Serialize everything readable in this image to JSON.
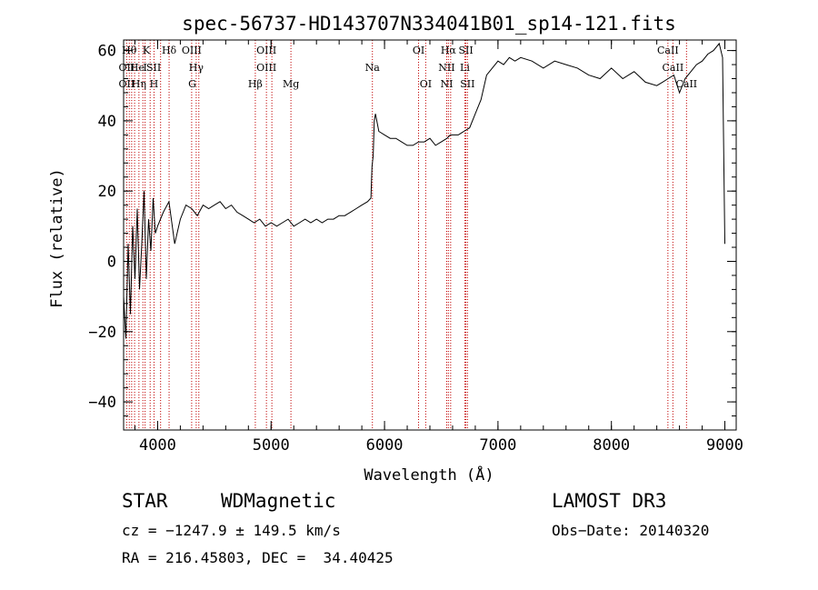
{
  "chart_data": {
    "type": "line",
    "title": "spec-56737-HD143707N334041B01_sp14-121.fits",
    "xlabel": "Wavelength (Å)",
    "ylabel": "Flux (relative)",
    "xlim": [
      3700,
      9100
    ],
    "ylim": [
      -48,
      63
    ],
    "x_ticks": [
      4000,
      5000,
      6000,
      7000,
      8000,
      9000
    ],
    "y_ticks": [
      -40,
      -20,
      0,
      20,
      40,
      60
    ],
    "x_minor_step": 200,
    "y_minor_step": 4,
    "grid": false,
    "line_color": "#000000",
    "marker_color": "#c00000",
    "series": [
      {
        "x": [
          3700,
          3720,
          3740,
          3760,
          3780,
          3800,
          3820,
          3840,
          3860,
          3880,
          3900,
          3920,
          3940,
          3960,
          3980,
          4000,
          4050,
          4100,
          4150,
          4200,
          4250,
          4300,
          4350,
          4400,
          4450,
          4500,
          4550,
          4600,
          4650,
          4700,
          4750,
          4800,
          4850,
          4900,
          4950,
          5000,
          5050,
          5100,
          5150,
          5200,
          5250,
          5300,
          5350,
          5400,
          5450,
          5500,
          5550,
          5600,
          5650,
          5700,
          5750,
          5800,
          5850,
          5880,
          5890,
          5900,
          5910,
          5920,
          5950,
          6000,
          6050,
          6100,
          6150,
          6200,
          6250,
          6300,
          6350,
          6400,
          6450,
          6500,
          6550,
          6580,
          6620,
          6650,
          6700,
          6750,
          6800,
          6850,
          6900,
          6950,
          7000,
          7050,
          7100,
          7150,
          7200,
          7300,
          7400,
          7500,
          7600,
          7700,
          7800,
          7900,
          8000,
          8100,
          8200,
          8300,
          8400,
          8450,
          8500,
          8550,
          8600,
          8650,
          8700,
          8750,
          8800,
          8850,
          8900,
          8950,
          8980,
          9000
        ],
        "y": [
          -10,
          -22,
          5,
          -15,
          10,
          -5,
          15,
          -8,
          5,
          20,
          -5,
          12,
          3,
          18,
          8,
          10,
          14,
          17,
          5,
          12,
          16,
          15,
          13,
          16,
          15,
          16,
          17,
          15,
          16,
          14,
          13,
          12,
          11,
          12,
          10,
          11,
          10,
          11,
          12,
          10,
          11,
          12,
          11,
          12,
          11,
          12,
          12,
          13,
          13,
          14,
          15,
          16,
          17,
          18,
          27,
          30,
          40,
          42,
          37,
          36,
          35,
          35,
          34,
          33,
          33,
          34,
          34,
          35,
          33,
          34,
          35,
          36,
          36,
          36,
          37,
          38,
          42,
          46,
          53,
          55,
          57,
          56,
          58,
          57,
          58,
          57,
          55,
          57,
          56,
          55,
          53,
          52,
          55,
          52,
          54,
          51,
          50,
          51,
          52,
          53,
          48,
          52,
          54,
          56,
          57,
          59,
          60,
          62,
          58,
          5
        ]
      }
    ],
    "line_markers": [
      {
        "x": 3750,
        "label": "Hθ",
        "row": 0
      },
      {
        "x": 3727,
        "label": "OII",
        "row": 1
      },
      {
        "x": 3727,
        "label": "OII",
        "row": 2
      },
      {
        "x": 3820,
        "label": "He",
        "row": 1
      },
      {
        "x": 3835,
        "label": "Hη",
        "row": 2
      },
      {
        "x": 3900,
        "label": "K",
        "row": 0
      },
      {
        "x": 3890,
        "label": "I",
        "row": 1
      },
      {
        "x": 3968,
        "label": "H",
        "row": 2
      },
      {
        "x": 3965,
        "label": "SII",
        "row": 1
      },
      {
        "x": 4101,
        "label": "Hδ",
        "row": 0
      },
      {
        "x": 4300,
        "label": "OIII",
        "row": 0
      },
      {
        "x": 4340,
        "label": "Hγ",
        "row": 1
      },
      {
        "x": 4305,
        "label": "G",
        "row": 2
      },
      {
        "x": 4959,
        "label": "OIII",
        "row": 0
      },
      {
        "x": 4959,
        "label": "OIII",
        "row": 1
      },
      {
        "x": 4861,
        "label": "Hβ",
        "row": 2
      },
      {
        "x": 5175,
        "label": "Mg",
        "row": 2
      },
      {
        "x": 5893,
        "label": "Na",
        "row": 1
      },
      {
        "x": 6300,
        "label": "OI",
        "row": 0
      },
      {
        "x": 6363,
        "label": "OI",
        "row": 2
      },
      {
        "x": 6563,
        "label": "Hα",
        "row": 0
      },
      {
        "x": 6548,
        "label": "NII",
        "row": 1
      },
      {
        "x": 6548,
        "label": "NI",
        "row": 2
      },
      {
        "x": 6717,
        "label": "SII",
        "row": 0
      },
      {
        "x": 6708,
        "label": "Li",
        "row": 1
      },
      {
        "x": 6731,
        "label": "SII",
        "row": 2
      },
      {
        "x": 8498,
        "label": "CaII",
        "row": 0
      },
      {
        "x": 8542,
        "label": "CaII",
        "row": 1
      },
      {
        "x": 8662,
        "label": "CaII",
        "row": 2
      }
    ],
    "marker_lines_x": [
      3727,
      3750,
      3771,
      3797,
      3835,
      3870,
      3889,
      3934,
      3968,
      4026,
      4101,
      4300,
      4340,
      4363,
      4861,
      4959,
      5007,
      5175,
      5893,
      6300,
      6363,
      6548,
      6563,
      6583,
      6708,
      6717,
      6731,
      8498,
      8542,
      8662
    ]
  },
  "info": {
    "class": "STAR",
    "subclass": "WDMagnetic",
    "survey": "LAMOST DR3",
    "cz": "cz = −1247.9 ± 149.5 km/s",
    "obs_date": "Obs−Date: 20140320",
    "radec": "RA = 216.45803, DEC =  34.40425"
  }
}
